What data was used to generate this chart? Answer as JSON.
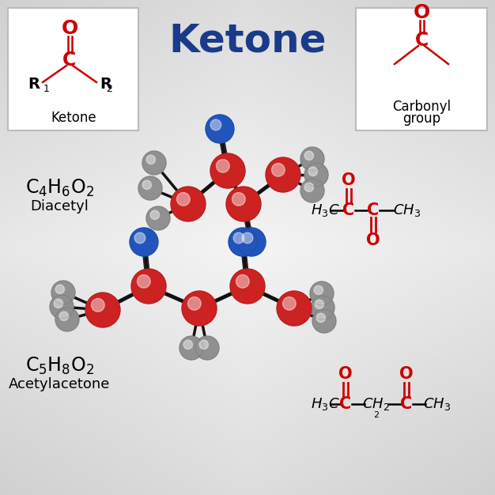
{
  "title": "Ketone",
  "title_color": "#1a3a8a",
  "title_fontsize": 36,
  "red": "#cc0000",
  "dark_blue": "#1a3a8a",
  "bond_color": "#111111",
  "gray_sphere": "#909090",
  "red_sphere": "#cc2222",
  "blue_sphere": "#2255bb",
  "box_bg": "#ffffff",
  "box_edge": "#bbbbbb",
  "bg_light": "#f2f2f2",
  "bg_dark": "#c0c0c0",
  "name_diacetyl": "Diacetyl",
  "name_acetylacetone": "Acetylacetone"
}
